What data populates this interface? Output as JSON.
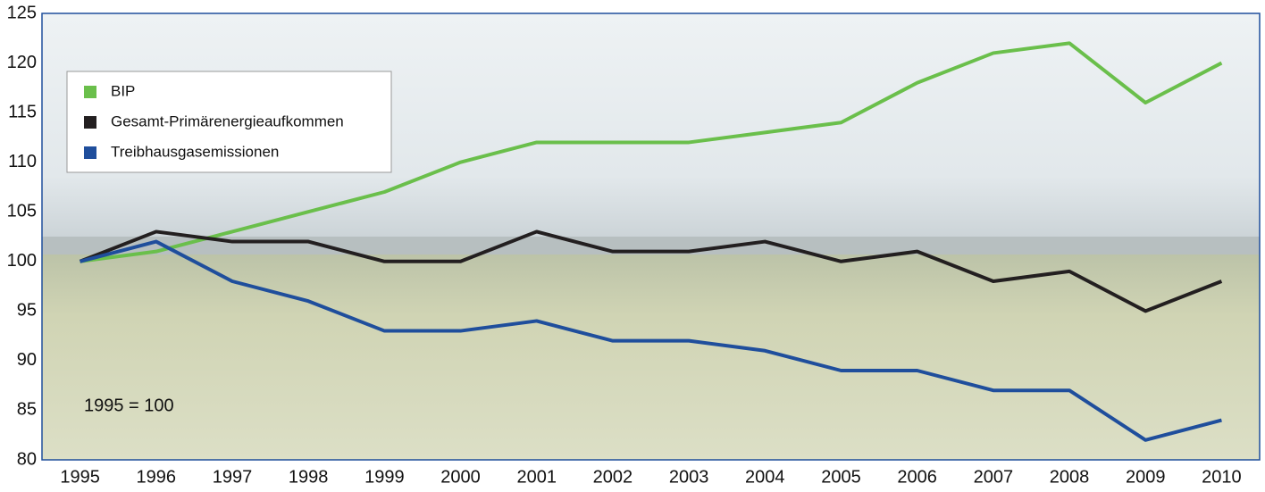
{
  "chart_data": {
    "type": "line",
    "categories": [
      "1995",
      "1996",
      "1997",
      "1998",
      "1999",
      "2000",
      "2001",
      "2002",
      "2003",
      "2004",
      "2005",
      "2006",
      "2007",
      "2008",
      "2009",
      "2010"
    ],
    "series": [
      {
        "name": "BIP",
        "color": "#6abf4b",
        "values": [
          100,
          101,
          103,
          105,
          107,
          110,
          112,
          112,
          112,
          113,
          114,
          118,
          121,
          122,
          116,
          120
        ]
      },
      {
        "name": "Gesamt-Primärenergieaufkommen",
        "color": "#231f20",
        "values": [
          100,
          103,
          102,
          102,
          100,
          100,
          103,
          101,
          101,
          102,
          100,
          101,
          98,
          99,
          95,
          98
        ]
      },
      {
        "name": "Treibhausgasemissionen",
        "color": "#1f4e9c",
        "values": [
          100,
          102,
          98,
          96,
          93,
          93,
          94,
          92,
          92,
          91,
          89,
          89,
          87,
          87,
          82,
          84
        ]
      }
    ],
    "annotation": "1995 = 100",
    "ylim": [
      80,
      125
    ],
    "yticks": [
      80,
      85,
      90,
      95,
      100,
      105,
      110,
      115,
      120,
      125
    ],
    "grid": false
  }
}
